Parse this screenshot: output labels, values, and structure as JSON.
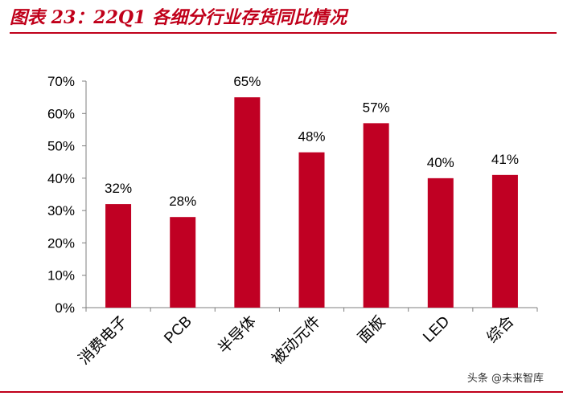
{
  "header": {
    "title": "图表 23：22Q1 各细分行业存货同比情况"
  },
  "watermark": {
    "text": "头条 @未来智库"
  },
  "colors": {
    "accent": "#c0001a",
    "bar": "#c00023",
    "axis": "#7f7f7f"
  },
  "chart_data": {
    "type": "bar",
    "title": "图表 23：22Q1 各细分行业存货同比情况",
    "xlabel": "",
    "ylabel": "",
    "categories": [
      "消费电子",
      "PCB",
      "半导体",
      "被动元件",
      "面板",
      "LED",
      "综合"
    ],
    "values": [
      32,
      28,
      65,
      48,
      57,
      40,
      41
    ],
    "data_labels": [
      "32%",
      "28%",
      "65%",
      "48%",
      "57%",
      "40%",
      "41%"
    ],
    "ylim": [
      0,
      70
    ],
    "yticks": [
      0,
      10,
      20,
      30,
      40,
      50,
      60,
      70
    ],
    "ytick_labels": [
      "0%",
      "10%",
      "20%",
      "30%",
      "40%",
      "50%",
      "60%",
      "70%"
    ],
    "grid": false,
    "legend": "none"
  }
}
